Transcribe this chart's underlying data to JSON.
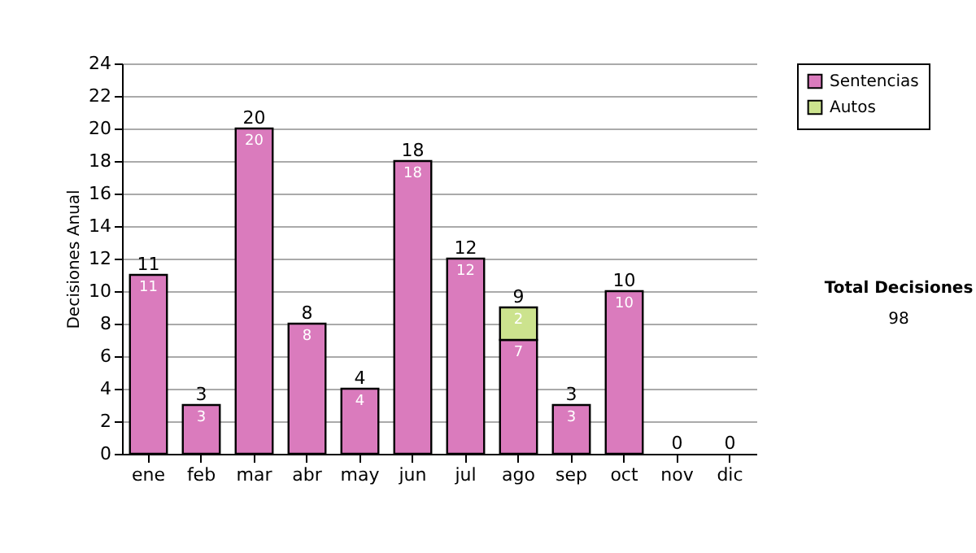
{
  "chart_data": {
    "type": "bar",
    "stacked": true,
    "ylabel": "Decisiones Anual",
    "categories": [
      "ene",
      "feb",
      "mar",
      "abr",
      "may",
      "jun",
      "jul",
      "ago",
      "sep",
      "oct",
      "nov",
      "dic"
    ],
    "series": [
      {
        "name": "Sentencias",
        "color": "#da7bbd",
        "values": [
          11,
          3,
          20,
          8,
          4,
          18,
          12,
          7,
          3,
          10,
          0,
          0
        ],
        "value_labels": [
          "11",
          "3",
          "20",
          "8",
          "4",
          "18",
          "12",
          "7",
          "3",
          "10",
          null,
          null
        ]
      },
      {
        "name": "Autos",
        "color": "#cce38e",
        "values": [
          0,
          0,
          0,
          0,
          0,
          0,
          0,
          2,
          0,
          0,
          0,
          0
        ],
        "value_labels": [
          null,
          null,
          null,
          null,
          null,
          null,
          null,
          "2",
          null,
          null,
          null,
          null
        ]
      }
    ],
    "totals": [
      "11",
      "3",
      "20",
      "8",
      "4",
      "18",
      "12",
      "9",
      "3",
      "10",
      "0",
      "0"
    ],
    "ylim": [
      0,
      24
    ],
    "yticks": [
      0,
      2,
      4,
      6,
      8,
      10,
      12,
      14,
      16,
      18,
      20,
      22,
      24
    ],
    "grid": "y",
    "legend": "right",
    "annotations": [
      "Total Decisiones",
      "98"
    ]
  }
}
